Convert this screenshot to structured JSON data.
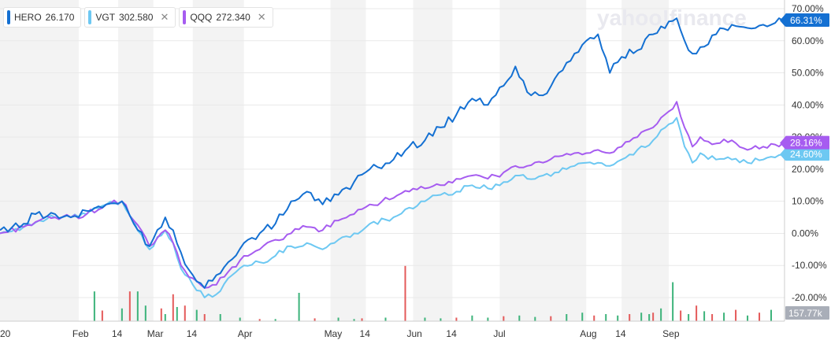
{
  "legend": [
    {
      "symbol": "HERO",
      "price": "26.170",
      "color": "#1470d2",
      "closable": false
    },
    {
      "symbol": "VGT",
      "price": "302.580",
      "color": "#6dc8f2",
      "closable": true
    },
    {
      "symbol": "QQQ",
      "price": "272.340",
      "color": "#a65cf0",
      "closable": true
    }
  ],
  "watermark": "yahoo!finance",
  "colors": {
    "up_volume": "#3cb37a",
    "down_volume": "#e45a5a",
    "grid": "#e9e9e9",
    "band": "#f3f3f3"
  },
  "chart_data": {
    "type": "line",
    "ylim": [
      -25,
      71
    ],
    "xlim": [
      0,
      199
    ],
    "grid": true,
    "legend_placement": "top-left",
    "y_ticks": [
      70,
      60,
      50,
      40,
      30,
      20,
      10,
      0,
      -10,
      -20
    ],
    "y_tick_labels": [
      "70.00%",
      "60.00%",
      "50.00%",
      "40.00%",
      "30.00%",
      "20.00%",
      "10.00%",
      "0.00%",
      "-10.00%",
      "-20.00%"
    ],
    "x_ticks": [
      {
        "i": 0,
        "label": "20"
      },
      {
        "i": 20,
        "label": "Feb"
      },
      {
        "i": 30,
        "label": "14"
      },
      {
        "i": 39,
        "label": "Mar"
      },
      {
        "i": 49,
        "label": "14"
      },
      {
        "i": 62,
        "label": "Apr"
      },
      {
        "i": 84,
        "label": "May"
      },
      {
        "i": 93,
        "label": "14"
      },
      {
        "i": 105,
        "label": "Jun"
      },
      {
        "i": 115,
        "label": "14"
      },
      {
        "i": 127,
        "label": "Jul"
      },
      {
        "i": 149,
        "label": "Aug"
      },
      {
        "i": 158,
        "label": "14"
      },
      {
        "i": 170,
        "label": "Sep"
      }
    ],
    "bands": [
      [
        0,
        20
      ],
      [
        30,
        39
      ],
      [
        49,
        62
      ],
      [
        84,
        93
      ],
      [
        105,
        115
      ],
      [
        127,
        149
      ],
      [
        158,
        170
      ]
    ],
    "series": [
      {
        "name": "HERO",
        "last_label": "66.31%",
        "color": "#1470d2",
        "anchors": [
          [
            0,
            1
          ],
          [
            6,
            3
          ],
          [
            9,
            6
          ],
          [
            14,
            6
          ],
          [
            18,
            5
          ],
          [
            22,
            7
          ],
          [
            27,
            9
          ],
          [
            31,
            10
          ],
          [
            34,
            3
          ],
          [
            38,
            -4
          ],
          [
            42,
            5
          ],
          [
            44,
            1
          ],
          [
            46,
            -6
          ],
          [
            49,
            -13
          ],
          [
            52,
            -17
          ],
          [
            55,
            -13
          ],
          [
            58,
            -9
          ],
          [
            62,
            -3
          ],
          [
            66,
            0
          ],
          [
            70,
            3
          ],
          [
            74,
            10
          ],
          [
            78,
            13
          ],
          [
            82,
            9
          ],
          [
            86,
            12
          ],
          [
            90,
            16
          ],
          [
            94,
            20
          ],
          [
            100,
            23
          ],
          [
            104,
            27
          ],
          [
            108,
            29
          ],
          [
            112,
            33
          ],
          [
            116,
            37
          ],
          [
            120,
            42
          ],
          [
            124,
            40
          ],
          [
            128,
            46
          ],
          [
            131,
            52
          ],
          [
            134,
            44
          ],
          [
            138,
            43
          ],
          [
            142,
            50
          ],
          [
            146,
            56
          ],
          [
            149,
            60
          ],
          [
            152,
            62
          ],
          [
            155,
            50
          ],
          [
            158,
            55
          ],
          [
            162,
            57
          ],
          [
            166,
            62
          ],
          [
            170,
            66
          ],
          [
            172,
            67
          ],
          [
            174,
            60
          ],
          [
            176,
            56
          ],
          [
            178,
            58
          ],
          [
            182,
            62
          ],
          [
            186,
            65
          ],
          [
            190,
            64
          ],
          [
            194,
            65
          ],
          [
            199,
            66.31
          ]
        ]
      },
      {
        "name": "VGT",
        "last_label": "24.60%",
        "color": "#6dc8f2",
        "anchors": [
          [
            0,
            0
          ],
          [
            6,
            2
          ],
          [
            10,
            4
          ],
          [
            14,
            5
          ],
          [
            18,
            5
          ],
          [
            22,
            6
          ],
          [
            27,
            9
          ],
          [
            31,
            10
          ],
          [
            34,
            4
          ],
          [
            38,
            -5
          ],
          [
            42,
            1
          ],
          [
            44,
            -3
          ],
          [
            46,
            -11
          ],
          [
            49,
            -16
          ],
          [
            52,
            -20
          ],
          [
            55,
            -19
          ],
          [
            58,
            -14
          ],
          [
            62,
            -10
          ],
          [
            66,
            -9
          ],
          [
            70,
            -7
          ],
          [
            74,
            -4
          ],
          [
            78,
            -3
          ],
          [
            82,
            -5
          ],
          [
            86,
            -2
          ],
          [
            90,
            0
          ],
          [
            94,
            3
          ],
          [
            100,
            5
          ],
          [
            104,
            8
          ],
          [
            108,
            10
          ],
          [
            112,
            12
          ],
          [
            116,
            13
          ],
          [
            120,
            15
          ],
          [
            124,
            14
          ],
          [
            128,
            16
          ],
          [
            131,
            18
          ],
          [
            134,
            17
          ],
          [
            138,
            18
          ],
          [
            142,
            19
          ],
          [
            146,
            21
          ],
          [
            149,
            22
          ],
          [
            152,
            22
          ],
          [
            155,
            21
          ],
          [
            158,
            23
          ],
          [
            162,
            26
          ],
          [
            166,
            29
          ],
          [
            170,
            34
          ],
          [
            172,
            36
          ],
          [
            174,
            27
          ],
          [
            176,
            22
          ],
          [
            178,
            25
          ],
          [
            182,
            23
          ],
          [
            186,
            23
          ],
          [
            190,
            22
          ],
          [
            194,
            23
          ],
          [
            199,
            24.6
          ]
        ]
      },
      {
        "name": "QQQ",
        "last_label": "28.16%",
        "color": "#a65cf0",
        "anchors": [
          [
            0,
            0
          ],
          [
            6,
            2
          ],
          [
            10,
            4
          ],
          [
            14,
            5
          ],
          [
            18,
            5
          ],
          [
            22,
            6
          ],
          [
            27,
            9
          ],
          [
            31,
            10
          ],
          [
            34,
            4
          ],
          [
            38,
            -4
          ],
          [
            42,
            1
          ],
          [
            44,
            -3
          ],
          [
            46,
            -10
          ],
          [
            49,
            -14
          ],
          [
            52,
            -17
          ],
          [
            55,
            -16
          ],
          [
            58,
            -12
          ],
          [
            62,
            -7
          ],
          [
            66,
            -5
          ],
          [
            70,
            -2
          ],
          [
            74,
            0
          ],
          [
            78,
            2
          ],
          [
            82,
            1
          ],
          [
            86,
            4
          ],
          [
            90,
            6
          ],
          [
            94,
            9
          ],
          [
            100,
            11
          ],
          [
            104,
            13
          ],
          [
            108,
            14
          ],
          [
            112,
            15
          ],
          [
            116,
            17
          ],
          [
            120,
            18
          ],
          [
            124,
            17
          ],
          [
            128,
            19
          ],
          [
            131,
            21
          ],
          [
            134,
            21
          ],
          [
            138,
            22
          ],
          [
            142,
            24
          ],
          [
            146,
            25
          ],
          [
            149,
            25
          ],
          [
            152,
            26
          ],
          [
            155,
            25
          ],
          [
            158,
            27
          ],
          [
            162,
            30
          ],
          [
            166,
            33
          ],
          [
            170,
            38
          ],
          [
            172,
            41
          ],
          [
            174,
            33
          ],
          [
            176,
            27
          ],
          [
            178,
            30
          ],
          [
            182,
            28
          ],
          [
            186,
            29
          ],
          [
            190,
            26
          ],
          [
            194,
            27
          ],
          [
            199,
            28.16
          ]
        ]
      }
    ],
    "volume": {
      "last_label": "157.77k",
      "bars": [
        {
          "i": 24,
          "v": 0.42,
          "up": true
        },
        {
          "i": 26,
          "v": 0.15,
          "up": false
        },
        {
          "i": 31,
          "v": 0.18,
          "up": true
        },
        {
          "i": 33,
          "v": 0.42,
          "up": false
        },
        {
          "i": 35,
          "v": 0.42,
          "up": true
        },
        {
          "i": 37,
          "v": 0.22,
          "up": true
        },
        {
          "i": 41,
          "v": 0.18,
          "up": false
        },
        {
          "i": 42,
          "v": 0.1,
          "up": true
        },
        {
          "i": 44,
          "v": 0.38,
          "up": false
        },
        {
          "i": 45,
          "v": 0.2,
          "up": true
        },
        {
          "i": 47,
          "v": 0.22,
          "up": false
        },
        {
          "i": 50,
          "v": 0.16,
          "up": true
        },
        {
          "i": 52,
          "v": 0.1,
          "up": false
        },
        {
          "i": 56,
          "v": 0.1,
          "up": true
        },
        {
          "i": 61,
          "v": 0.05,
          "up": true
        },
        {
          "i": 66,
          "v": 0.03,
          "up": false
        },
        {
          "i": 70,
          "v": 0.03,
          "up": true
        },
        {
          "i": 76,
          "v": 0.4,
          "up": true
        },
        {
          "i": 80,
          "v": 0.04,
          "up": false
        },
        {
          "i": 86,
          "v": 0.05,
          "up": true
        },
        {
          "i": 90,
          "v": 0.03,
          "up": true
        },
        {
          "i": 92,
          "v": 0.04,
          "up": false
        },
        {
          "i": 98,
          "v": 0.05,
          "up": true
        },
        {
          "i": 103,
          "v": 0.78,
          "up": false
        },
        {
          "i": 108,
          "v": 0.05,
          "up": true
        },
        {
          "i": 112,
          "v": 0.04,
          "up": true
        },
        {
          "i": 116,
          "v": 0.05,
          "up": false
        },
        {
          "i": 120,
          "v": 0.08,
          "up": true
        },
        {
          "i": 124,
          "v": 0.05,
          "up": true
        },
        {
          "i": 128,
          "v": 0.07,
          "up": false
        },
        {
          "i": 132,
          "v": 0.08,
          "up": true
        },
        {
          "i": 136,
          "v": 0.06,
          "up": true
        },
        {
          "i": 140,
          "v": 0.07,
          "up": false
        },
        {
          "i": 144,
          "v": 0.1,
          "up": true
        },
        {
          "i": 148,
          "v": 0.12,
          "up": true
        },
        {
          "i": 151,
          "v": 0.08,
          "up": false
        },
        {
          "i": 154,
          "v": 0.1,
          "up": true
        },
        {
          "i": 157,
          "v": 0.08,
          "up": true
        },
        {
          "i": 160,
          "v": 0.1,
          "up": false
        },
        {
          "i": 163,
          "v": 0.12,
          "up": true
        },
        {
          "i": 165,
          "v": 0.1,
          "up": true
        },
        {
          "i": 166,
          "v": 0.12,
          "up": false
        },
        {
          "i": 168,
          "v": 0.18,
          "up": true
        },
        {
          "i": 171,
          "v": 0.55,
          "up": true
        },
        {
          "i": 173,
          "v": 0.15,
          "up": false
        },
        {
          "i": 175,
          "v": 0.1,
          "up": true
        },
        {
          "i": 177,
          "v": 0.22,
          "up": false
        },
        {
          "i": 179,
          "v": 0.14,
          "up": true
        },
        {
          "i": 181,
          "v": 0.1,
          "up": false
        },
        {
          "i": 184,
          "v": 0.12,
          "up": true
        },
        {
          "i": 187,
          "v": 0.16,
          "up": false
        },
        {
          "i": 190,
          "v": 0.08,
          "up": true
        },
        {
          "i": 193,
          "v": 0.12,
          "up": false
        },
        {
          "i": 196,
          "v": 0.16,
          "up": true
        }
      ]
    }
  }
}
